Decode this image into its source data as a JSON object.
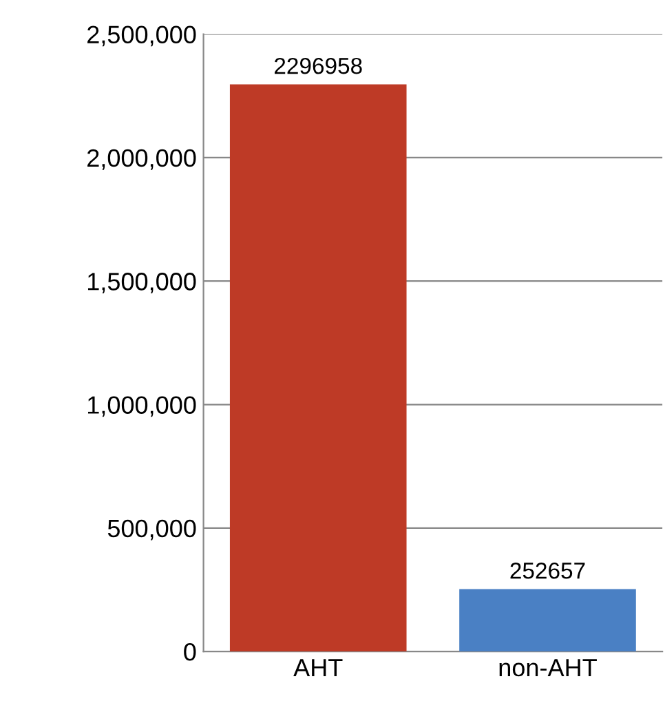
{
  "chart_data": {
    "type": "bar",
    "categories": [
      "AHT",
      "non-AHT"
    ],
    "values": [
      2296958,
      252657
    ],
    "colors": [
      "#be3a26",
      "#4a80c4"
    ],
    "ylim": [
      0,
      2500000
    ],
    "yticks": [
      {
        "value": 0,
        "label": "0"
      },
      {
        "value": 500000,
        "label": "500,000"
      },
      {
        "value": 1000000,
        "label": "1,000,000"
      },
      {
        "value": 1500000,
        "label": "1,500,000"
      },
      {
        "value": 2000000,
        "label": "2,000,000"
      },
      {
        "value": 2500000,
        "label": "2,500,000"
      }
    ],
    "grid": "y",
    "data_labels": true,
    "legend": false
  }
}
